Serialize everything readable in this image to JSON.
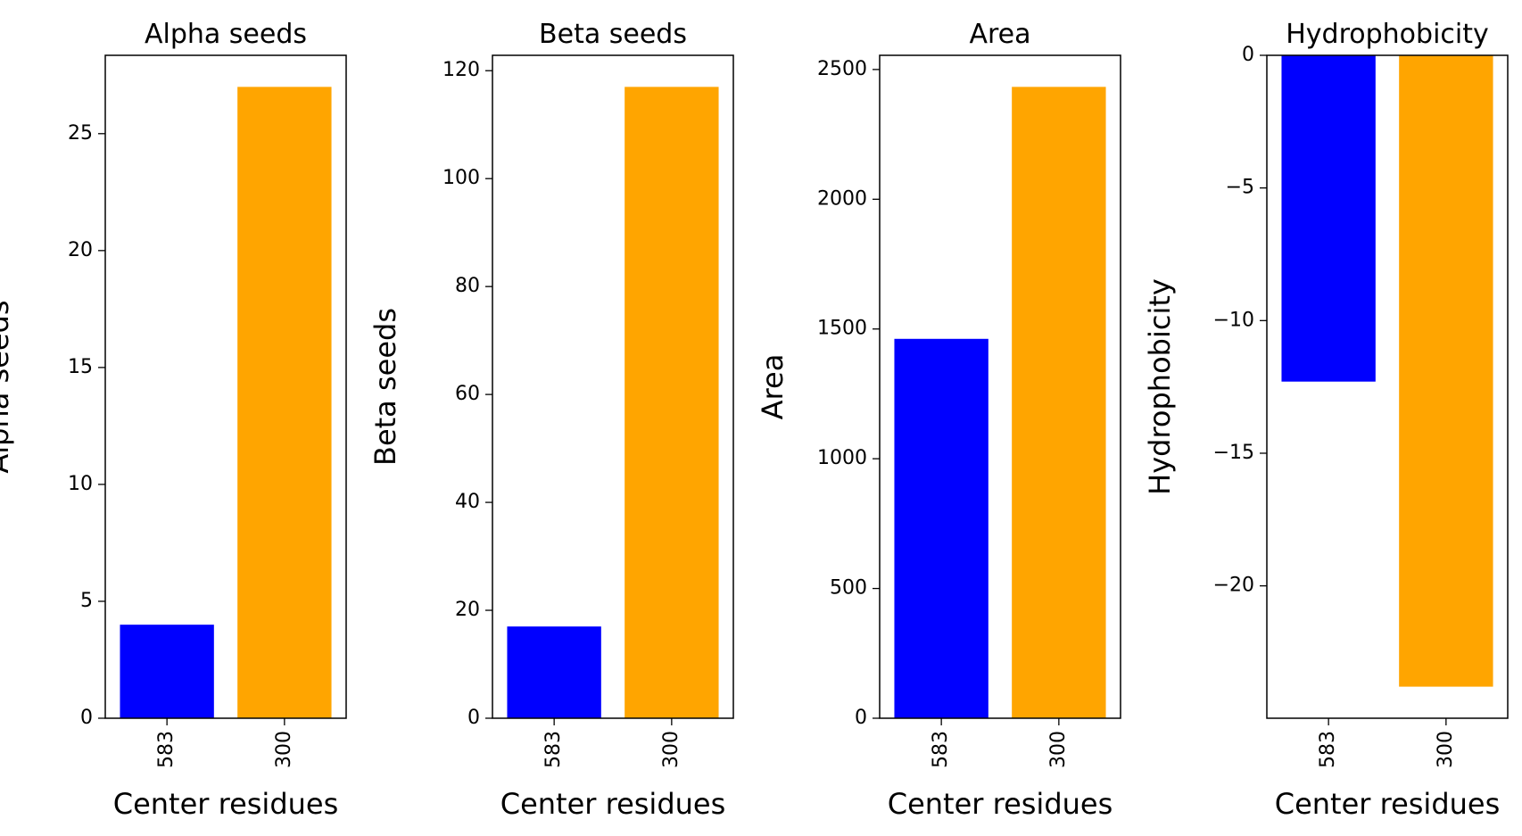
{
  "chart_data": [
    {
      "type": "bar",
      "title": "Alpha seeds",
      "xlabel": "Center residues",
      "ylabel": "Alpha seeds",
      "categories": [
        "583",
        "300"
      ],
      "values": [
        4,
        27
      ],
      "colors": [
        "#0000ff",
        "#ffa500"
      ],
      "ylim": [
        0,
        28.35
      ],
      "yticks": [
        0,
        5,
        10,
        15,
        20,
        25
      ],
      "ytick_labels": [
        "0",
        "5",
        "10",
        "15",
        "20",
        "25"
      ]
    },
    {
      "type": "bar",
      "title": "Beta seeds",
      "xlabel": "Center residues",
      "ylabel": "Beta seeds",
      "categories": [
        "583",
        "300"
      ],
      "values": [
        17,
        117
      ],
      "colors": [
        "#0000ff",
        "#ffa500"
      ],
      "ylim": [
        0,
        122.85
      ],
      "yticks": [
        0,
        20,
        40,
        60,
        80,
        100,
        120
      ],
      "ytick_labels": [
        "0",
        "20",
        "40",
        "60",
        "80",
        "100",
        "120"
      ]
    },
    {
      "type": "bar",
      "title": "Area",
      "xlabel": "Center residues",
      "ylabel": "Area",
      "categories": [
        "583",
        "300"
      ],
      "values": [
        1462,
        2433
      ],
      "colors": [
        "#0000ff",
        "#ffa500"
      ],
      "ylim": [
        0,
        2554.65
      ],
      "yticks": [
        0,
        500,
        1000,
        1500,
        2000,
        2500
      ],
      "ytick_labels": [
        "0",
        "500",
        "1000",
        "1500",
        "2000",
        "2500"
      ]
    },
    {
      "type": "bar",
      "title": "Hydrophobicity",
      "xlabel": "Center residues",
      "ylabel": "Hydrophobicity",
      "categories": [
        "583",
        "300"
      ],
      "values": [
        -12.3,
        -23.8
      ],
      "colors": [
        "#0000ff",
        "#ffa500"
      ],
      "ylim": [
        -24.99,
        0
      ],
      "yticks": [
        0,
        -5,
        -10,
        -15,
        -20
      ],
      "ytick_labels": [
        "0",
        "−5",
        "−10",
        "−15",
        "−20"
      ]
    }
  ]
}
